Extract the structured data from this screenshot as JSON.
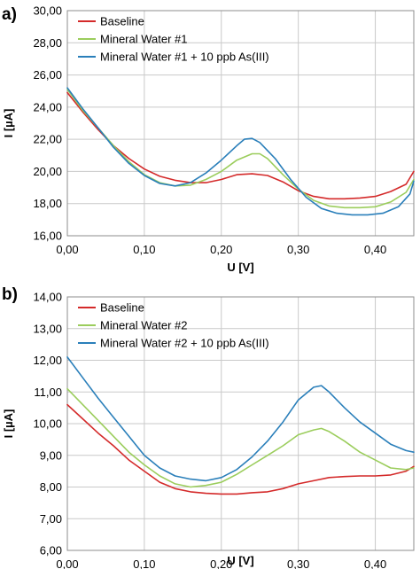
{
  "chart_data": [
    {
      "panel": "a)",
      "type": "line",
      "xlabel": "U [V]",
      "ylabel": "I [µA]",
      "xlim": [
        0,
        0.45
      ],
      "ylim": [
        16,
        30
      ],
      "x_tick_values": [
        0,
        0.1,
        0.2,
        0.3,
        0.4
      ],
      "x_ticks": [
        "0,00",
        "0,10",
        "0,20",
        "0,30",
        "0,40"
      ],
      "y_tick_values": [
        16,
        18,
        20,
        22,
        24,
        26,
        28,
        30
      ],
      "y_ticks": [
        "16,00",
        "18,00",
        "20,00",
        "22,00",
        "24,00",
        "26,00",
        "28,00",
        "30,00"
      ],
      "grid": true,
      "legend_position": "top-left",
      "series": [
        {
          "name": "Baseline",
          "color": "#d42a2a",
          "points": [
            [
              0.0,
              24.9
            ],
            [
              0.02,
              23.7
            ],
            [
              0.04,
              22.6
            ],
            [
              0.06,
              21.6
            ],
            [
              0.08,
              20.8
            ],
            [
              0.1,
              20.15
            ],
            [
              0.12,
              19.7
            ],
            [
              0.14,
              19.45
            ],
            [
              0.16,
              19.3
            ],
            [
              0.18,
              19.3
            ],
            [
              0.2,
              19.5
            ],
            [
              0.22,
              19.8
            ],
            [
              0.24,
              19.85
            ],
            [
              0.26,
              19.75
            ],
            [
              0.28,
              19.35
            ],
            [
              0.3,
              18.8
            ],
            [
              0.32,
              18.45
            ],
            [
              0.34,
              18.3
            ],
            [
              0.36,
              18.3
            ],
            [
              0.38,
              18.35
            ],
            [
              0.4,
              18.45
            ],
            [
              0.42,
              18.75
            ],
            [
              0.44,
              19.2
            ],
            [
              0.45,
              20.0
            ]
          ]
        },
        {
          "name": "Mineral Water #1",
          "color": "#9bcd5c",
          "points": [
            [
              0.0,
              25.1
            ],
            [
              0.02,
              23.8
            ],
            [
              0.04,
              22.7
            ],
            [
              0.06,
              21.6
            ],
            [
              0.08,
              20.6
            ],
            [
              0.1,
              19.8
            ],
            [
              0.12,
              19.3
            ],
            [
              0.14,
              19.1
            ],
            [
              0.16,
              19.15
            ],
            [
              0.18,
              19.5
            ],
            [
              0.2,
              20.0
            ],
            [
              0.22,
              20.7
            ],
            [
              0.24,
              21.1
            ],
            [
              0.25,
              21.1
            ],
            [
              0.26,
              20.8
            ],
            [
              0.28,
              19.8
            ],
            [
              0.3,
              18.9
            ],
            [
              0.32,
              18.2
            ],
            [
              0.34,
              17.85
            ],
            [
              0.36,
              17.75
            ],
            [
              0.38,
              17.75
            ],
            [
              0.4,
              17.8
            ],
            [
              0.42,
              18.1
            ],
            [
              0.44,
              18.7
            ],
            [
              0.45,
              19.5
            ]
          ]
        },
        {
          "name": "Mineral Water #1 + 10 ppb As(III)",
          "color": "#2a7fba",
          "points": [
            [
              0.0,
              25.2
            ],
            [
              0.02,
              23.9
            ],
            [
              0.04,
              22.7
            ],
            [
              0.06,
              21.5
            ],
            [
              0.08,
              20.5
            ],
            [
              0.1,
              19.75
            ],
            [
              0.12,
              19.25
            ],
            [
              0.14,
              19.1
            ],
            [
              0.16,
              19.3
            ],
            [
              0.18,
              19.9
            ],
            [
              0.2,
              20.7
            ],
            [
              0.22,
              21.6
            ],
            [
              0.23,
              22.0
            ],
            [
              0.24,
              22.05
            ],
            [
              0.25,
              21.8
            ],
            [
              0.27,
              20.8
            ],
            [
              0.29,
              19.5
            ],
            [
              0.31,
              18.4
            ],
            [
              0.33,
              17.7
            ],
            [
              0.35,
              17.4
            ],
            [
              0.37,
              17.3
            ],
            [
              0.39,
              17.3
            ],
            [
              0.41,
              17.4
            ],
            [
              0.43,
              17.8
            ],
            [
              0.445,
              18.6
            ],
            [
              0.45,
              19.4
            ]
          ]
        }
      ]
    },
    {
      "panel": "b)",
      "type": "line",
      "xlabel": "U [V]",
      "ylabel": "I [µA]",
      "xlim": [
        0,
        0.45
      ],
      "ylim": [
        6,
        14
      ],
      "x_tick_values": [
        0,
        0.1,
        0.2,
        0.3,
        0.4
      ],
      "x_ticks": [
        "0,00",
        "0,10",
        "0,20",
        "0,30",
        "0,40"
      ],
      "y_tick_values": [
        6,
        7,
        8,
        9,
        10,
        11,
        12,
        13,
        14
      ],
      "y_ticks": [
        "6,00",
        "7,00",
        "8,00",
        "9,00",
        "10,00",
        "11,00",
        "12,00",
        "13,00",
        "14,00"
      ],
      "grid": true,
      "legend_position": "top-left",
      "series": [
        {
          "name": "Baseline",
          "color": "#d42a2a",
          "points": [
            [
              0.0,
              10.6
            ],
            [
              0.02,
              10.15
            ],
            [
              0.04,
              9.7
            ],
            [
              0.06,
              9.3
            ],
            [
              0.08,
              8.85
            ],
            [
              0.1,
              8.5
            ],
            [
              0.12,
              8.15
            ],
            [
              0.14,
              7.95
            ],
            [
              0.16,
              7.85
            ],
            [
              0.18,
              7.8
            ],
            [
              0.2,
              7.78
            ],
            [
              0.22,
              7.78
            ],
            [
              0.24,
              7.82
            ],
            [
              0.26,
              7.85
            ],
            [
              0.28,
              7.95
            ],
            [
              0.3,
              8.1
            ],
            [
              0.32,
              8.2
            ],
            [
              0.34,
              8.3
            ],
            [
              0.36,
              8.33
            ],
            [
              0.38,
              8.35
            ],
            [
              0.4,
              8.35
            ],
            [
              0.42,
              8.38
            ],
            [
              0.44,
              8.5
            ],
            [
              0.45,
              8.65
            ]
          ]
        },
        {
          "name": "Mineral Water #2",
          "color": "#9bcd5c",
          "points": [
            [
              0.0,
              11.1
            ],
            [
              0.02,
              10.6
            ],
            [
              0.04,
              10.1
            ],
            [
              0.06,
              9.6
            ],
            [
              0.08,
              9.1
            ],
            [
              0.1,
              8.7
            ],
            [
              0.12,
              8.35
            ],
            [
              0.14,
              8.1
            ],
            [
              0.16,
              8.0
            ],
            [
              0.18,
              8.05
            ],
            [
              0.2,
              8.15
            ],
            [
              0.22,
              8.4
            ],
            [
              0.24,
              8.7
            ],
            [
              0.26,
              9.0
            ],
            [
              0.28,
              9.3
            ],
            [
              0.3,
              9.65
            ],
            [
              0.32,
              9.8
            ],
            [
              0.33,
              9.85
            ],
            [
              0.34,
              9.75
            ],
            [
              0.36,
              9.45
            ],
            [
              0.38,
              9.1
            ],
            [
              0.4,
              8.85
            ],
            [
              0.42,
              8.6
            ],
            [
              0.44,
              8.55
            ],
            [
              0.45,
              8.6
            ]
          ]
        },
        {
          "name": "Mineral Water #2 + 10 ppb As(III)",
          "color": "#2a7fba",
          "points": [
            [
              0.0,
              12.1
            ],
            [
              0.02,
              11.45
            ],
            [
              0.04,
              10.8
            ],
            [
              0.06,
              10.2
            ],
            [
              0.08,
              9.6
            ],
            [
              0.1,
              9.0
            ],
            [
              0.12,
              8.6
            ],
            [
              0.14,
              8.35
            ],
            [
              0.16,
              8.25
            ],
            [
              0.18,
              8.2
            ],
            [
              0.2,
              8.3
            ],
            [
              0.22,
              8.55
            ],
            [
              0.24,
              8.95
            ],
            [
              0.26,
              9.45
            ],
            [
              0.28,
              10.05
            ],
            [
              0.3,
              10.75
            ],
            [
              0.32,
              11.15
            ],
            [
              0.33,
              11.2
            ],
            [
              0.34,
              11.0
            ],
            [
              0.36,
              10.5
            ],
            [
              0.38,
              10.05
            ],
            [
              0.4,
              9.7
            ],
            [
              0.42,
              9.35
            ],
            [
              0.44,
              9.15
            ],
            [
              0.45,
              9.1
            ]
          ]
        }
      ]
    }
  ]
}
